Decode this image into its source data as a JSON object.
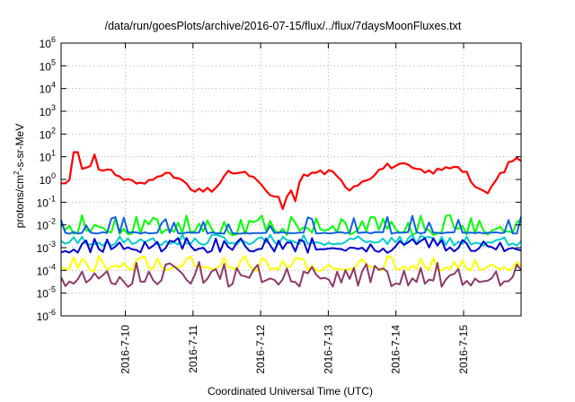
{
  "chart_data": {
    "type": "line",
    "title": "/data/run/goesPlots/archive/2016-07-15/flux/../flux/7daysMoonFluxes.txt",
    "xlabel": "Coordinated Universal Time (UTC)",
    "ylabel": {
      "pre": "protons/cm",
      "sup": "2",
      "post": "-s-sr-MeV"
    },
    "y_scale": "log",
    "ylim_exp": [
      -6,
      6
    ],
    "y_ticks": [
      {
        "base": "10",
        "exp": "6"
      },
      {
        "base": "10",
        "exp": "5"
      },
      {
        "base": "10",
        "exp": "4"
      },
      {
        "base": "10",
        "exp": "3"
      },
      {
        "base": "10",
        "exp": "2"
      },
      {
        "base": "10",
        "exp": "1"
      },
      {
        "base": "10",
        "exp": "0"
      },
      {
        "base": "10",
        "exp": "-1"
      },
      {
        "base": "10",
        "exp": "-2"
      },
      {
        "base": "10",
        "exp": "-3"
      },
      {
        "base": "10",
        "exp": "-4"
      },
      {
        "base": "10",
        "exp": "-5"
      },
      {
        "base": "10",
        "exp": "-6"
      }
    ],
    "x_range_days": [
      0,
      6.8
    ],
    "x_ticks": [
      {
        "label": "2016-7-10",
        "day": 0.95
      },
      {
        "label": "2016-7-11",
        "day": 1.95
      },
      {
        "label": "2016-7-12",
        "day": 2.95
      },
      {
        "label": "2016-7-13",
        "day": 3.95
      },
      {
        "label": "2016-7-14",
        "day": 4.95
      },
      {
        "label": "2016-7-15",
        "day": 5.95
      }
    ],
    "grid": true,
    "series": [
      {
        "color": "#ff0000",
        "width": 2.2,
        "base": 0.15,
        "mode": "red",
        "knots": [
          [
            0,
            -0.2
          ],
          [
            0.18,
            0.1
          ],
          [
            0.35,
            0.5
          ],
          [
            0.5,
            0.5
          ],
          [
            0.7,
            0.45
          ],
          [
            0.9,
            0.05
          ],
          [
            1.2,
            -0.25
          ],
          [
            1.45,
            0.3
          ],
          [
            1.75,
            0.05
          ],
          [
            1.95,
            -0.55
          ],
          [
            2.25,
            -0.45
          ],
          [
            2.5,
            0.35
          ],
          [
            2.8,
            0.2
          ],
          [
            3.05,
            -0.6
          ],
          [
            3.3,
            -1.0
          ],
          [
            3.55,
            0.1
          ],
          [
            3.8,
            0.35
          ],
          [
            4.0,
            0.3
          ],
          [
            4.25,
            -0.4
          ],
          [
            4.55,
            0.1
          ],
          [
            4.8,
            0.6
          ],
          [
            5.1,
            0.6
          ],
          [
            5.35,
            0.3
          ],
          [
            5.6,
            0.4
          ],
          [
            5.85,
            0.65
          ],
          [
            6.0,
            0.3
          ],
          [
            6.15,
            -0.5
          ],
          [
            6.3,
            -0.6
          ],
          [
            6.5,
            0.25
          ],
          [
            6.7,
            0.95
          ],
          [
            6.8,
            0.85
          ]
        ],
        "spikes": [
          [
            0.22,
            1.2
          ],
          [
            0.5,
            1.1
          ],
          [
            3.3,
            -1.3
          ],
          [
            3.45,
            -0.95
          ]
        ]
      },
      {
        "color": "#00ff00",
        "width": 2.0,
        "base": -2.15,
        "mode": "spiky",
        "amp": 0.6,
        "seed": 11
      },
      {
        "color": "#1060e0",
        "width": 2.0,
        "base": -2.35,
        "mode": "flat",
        "amp": 0.55,
        "seed": 5
      },
      {
        "color": "#00cccc",
        "width": 2.0,
        "base": -2.75,
        "mode": "spiky",
        "amp": 0.35,
        "seed": 7
      },
      {
        "color": "#0000cc",
        "width": 2.0,
        "base": -3.0,
        "mode": "spiky",
        "amp": 0.45,
        "seed": 3
      },
      {
        "color": "#ffff00",
        "width": 2.0,
        "base": -3.8,
        "mode": "spiky",
        "amp": 0.45,
        "seed": 21
      },
      {
        "color": "#8b3a6b",
        "width": 2.0,
        "base": -4.35,
        "mode": "spiky",
        "amp": 0.75,
        "seed": 17
      }
    ]
  }
}
